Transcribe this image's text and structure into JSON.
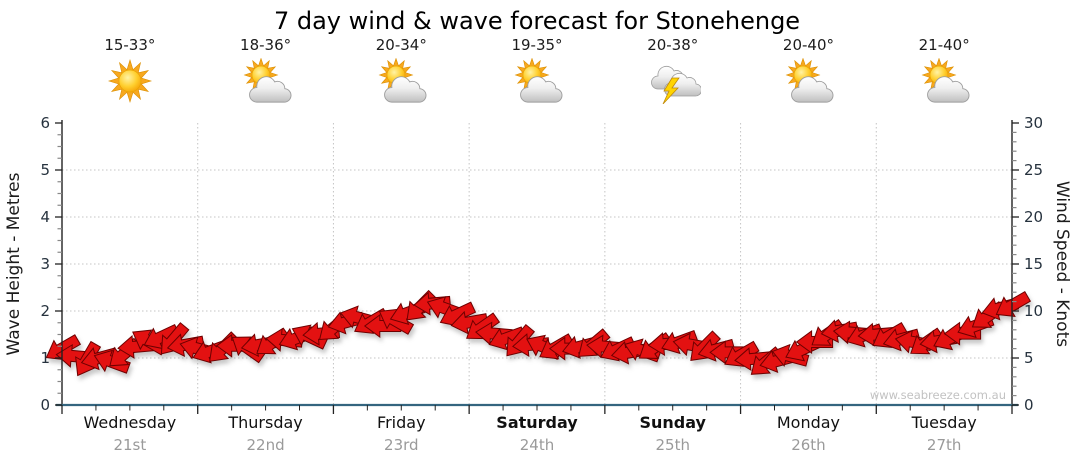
{
  "title": "7 day wind & wave forecast for Stonehenge",
  "watermark": "www.seabreeze.com.au",
  "days": [
    {
      "name": "Wednesday",
      "date": "21st",
      "temp": "15-33°",
      "icon": "sunny",
      "weekend": false
    },
    {
      "name": "Thursday",
      "date": "22nd",
      "temp": "18-36°",
      "icon": "sun-cloud",
      "weekend": false
    },
    {
      "name": "Friday",
      "date": "23rd",
      "temp": "20-34°",
      "icon": "sun-cloud",
      "weekend": false
    },
    {
      "name": "Saturday",
      "date": "24th",
      "temp": "19-35°",
      "icon": "sun-cloud",
      "weekend": true
    },
    {
      "name": "Sunday",
      "date": "25th",
      "temp": "20-38°",
      "icon": "thunderstorm",
      "weekend": true
    },
    {
      "name": "Monday",
      "date": "26th",
      "temp": "20-40°",
      "icon": "sun-cloud",
      "weekend": false
    },
    {
      "name": "Tuesday",
      "date": "27th",
      "temp": "21-40°",
      "icon": "sun-cloud",
      "weekend": false
    }
  ],
  "chart_data": {
    "type": "wind-arrow-series",
    "title": "7 day wind & wave forecast for Stonehenge",
    "left_axis": {
      "label": "Wave Height - Metres",
      "min": 0,
      "max": 6,
      "ticks": [
        0,
        1,
        2,
        3,
        4,
        5,
        6
      ],
      "minor_step": 0.25
    },
    "right_axis": {
      "label": "Wind Speed - Knots",
      "min": 0,
      "max": 30,
      "ticks": [
        0,
        5,
        10,
        15,
        20,
        25,
        30
      ],
      "minor_step": 1
    },
    "x_axis": {
      "num_days": 7,
      "minor_divisions_per_day": 4,
      "grid_at_day_boundaries": true
    },
    "legend": "none",
    "grid": "dotted",
    "wind": {
      "units": "knots",
      "speeds_knots": [
        6.0,
        5.2,
        4.8,
        5.0,
        4.6,
        5.4,
        6.2,
        6.8,
        7.2,
        6.9,
        6.4,
        6.0,
        5.7,
        6.0,
        6.3,
        6.1,
        6.4,
        6.6,
        6.9,
        7.1,
        7.3,
        7.6,
        8.2,
        8.8,
        9.3,
        8.8,
        8.4,
        9.0,
        9.8,
        10.4,
        10.8,
        10.3,
        9.6,
        8.8,
        8.2,
        7.6,
        7.1,
        6.7,
        6.4,
        6.2,
        6.1,
        6.0,
        6.2,
        6.4,
        6.2,
        5.9,
        5.6,
        5.8,
        6.1,
        6.5,
        6.7,
        6.4,
        6.1,
        5.9,
        5.6,
        5.3,
        4.9,
        4.5,
        4.7,
        5.2,
        5.9,
        6.7,
        7.5,
        7.9,
        7.7,
        7.4,
        7.5,
        7.3,
        7.0,
        6.7,
        6.6,
        6.8,
        7.1,
        7.6,
        8.4,
        9.4,
        10.3,
        10.6
      ],
      "directions_deg": [
        150,
        185,
        120,
        165,
        200,
        140,
        175,
        210,
        155,
        130,
        170,
        195,
        160,
        135,
        180,
        215,
        170,
        145,
        185,
        160,
        205,
        175,
        140,
        165,
        195,
        150,
        180,
        210,
        160,
        135,
        175,
        200,
        155,
        170,
        145,
        185,
        160,
        130,
        175,
        205,
        150,
        180,
        165,
        140,
        185,
        155,
        170,
        200,
        145,
        175,
        160,
        190,
        135,
        165,
        180,
        150,
        175,
        140,
        165,
        195,
        155,
        180,
        145,
        170,
        185,
        160,
        175,
        150,
        165,
        190,
        145,
        170,
        155,
        180,
        160,
        145,
        165,
        150
      ]
    },
    "colors": {
      "arrow": "#e31111",
      "arrow_outline": "#6e0000",
      "grid": "#c4c4c4",
      "axis": "#222222",
      "baseline": "#34657f",
      "tick_minor": "#888888",
      "tick_label": "#26323e",
      "date_label": "#9a9a9a",
      "watermark": "#c2c2c2"
    }
  }
}
